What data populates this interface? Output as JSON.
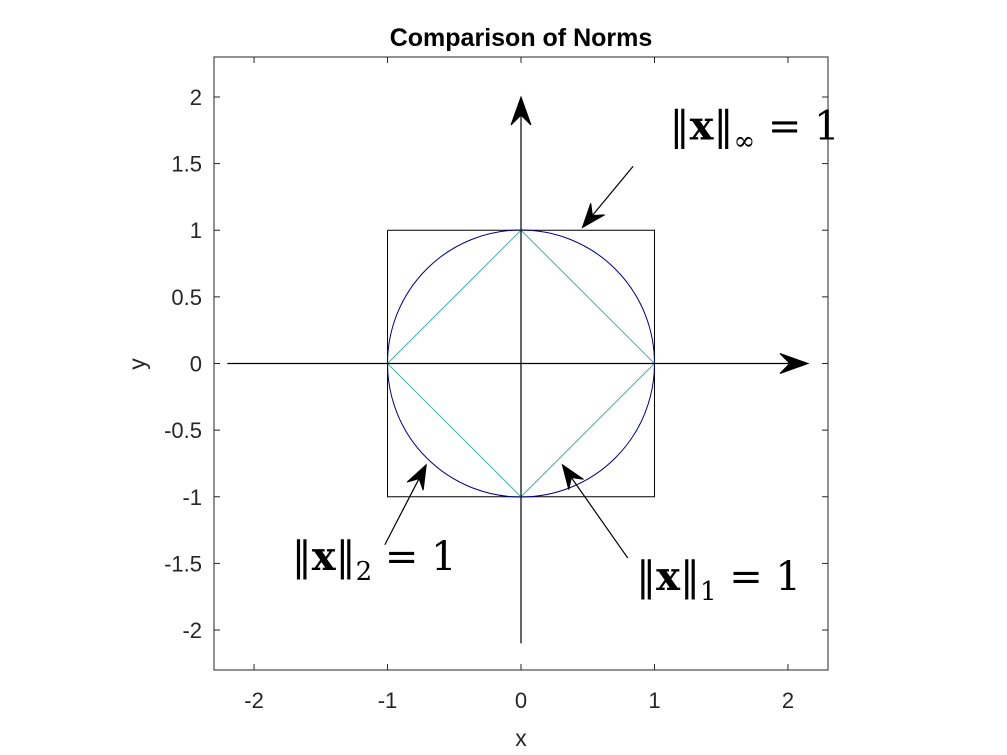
{
  "chart_data": {
    "type": "line",
    "title": "Comparison of Norms",
    "xlabel": "x",
    "ylabel": "y",
    "xlim": [
      -2.3,
      2.3
    ],
    "ylim": [
      -2.3,
      2.3
    ],
    "x_ticks": [
      -2,
      -1,
      0,
      1,
      2
    ],
    "x_tick_labels": [
      "-2",
      "-1",
      "0",
      "1",
      "2"
    ],
    "y_ticks": [
      2,
      1.5,
      1,
      0.5,
      0,
      -0.5,
      -1,
      -1.5,
      -2
    ],
    "y_tick_labels": [
      "2",
      "1.5",
      "1",
      "0.5",
      "0",
      "-0.5",
      "-1",
      "-1.5",
      "-2"
    ],
    "grid": false,
    "series": [
      {
        "color": "#000000",
        "x": [
          -1,
          1,
          1,
          -1,
          -1
        ],
        "y": [
          1,
          1,
          -1,
          -1,
          1
        ]
      },
      {
        "color": "#00008b",
        "shape": "circle",
        "center": [
          0,
          0
        ],
        "radius": 1
      },
      {
        "color": "#3cb4a4",
        "x": [
          0,
          1,
          0,
          -1,
          0
        ],
        "y": [
          1,
          0,
          -1,
          0,
          1
        ]
      }
    ],
    "coordinate_axes": {
      "color": "#000000",
      "x_axis": {
        "from": [
          -2.2,
          0
        ],
        "to": [
          2.15,
          0
        ]
      },
      "y_axis": {
        "from": [
          0,
          -2.1
        ],
        "to": [
          0,
          2.0
        ]
      }
    },
    "annotations": [
      {
        "norm": "∞",
        "text_parts": [
          "‖",
          "x",
          "‖",
          "∞",
          " = 1"
        ],
        "text_at": [
          1.75,
          1.68
        ],
        "arrow_from": [
          0.84,
          1.48
        ],
        "arrow_to": [
          0.46,
          1.02
        ]
      },
      {
        "norm": "2",
        "text_parts": [
          "‖",
          "x",
          "‖",
          "2",
          " = 1"
        ],
        "text_at": [
          -1.1,
          -1.55
        ],
        "arrow_from": [
          -1.02,
          -1.36
        ],
        "arrow_to": [
          -0.71,
          -0.76
        ]
      },
      {
        "norm": "1",
        "text_parts": [
          "‖",
          "x",
          "‖",
          "1",
          " = 1"
        ],
        "text_at": [
          1.48,
          -1.7
        ],
        "arrow_from": [
          0.8,
          -1.46
        ],
        "arrow_to": [
          0.31,
          -0.76
        ]
      }
    ]
  }
}
